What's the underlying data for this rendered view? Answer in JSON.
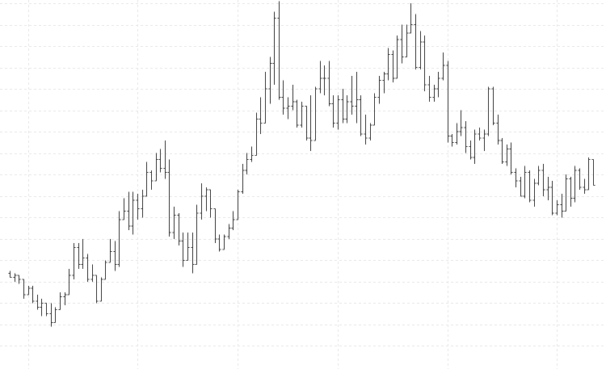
{
  "chart_data": {
    "type": "ohlc",
    "grid": true,
    "colors": {
      "bar": "#333333",
      "grid": "#e6e6e6",
      "background": "#ffffff"
    },
    "ylim": [
      -10,
      160
    ],
    "y_gridlines": [
      0,
      10,
      20,
      30,
      40,
      50,
      60,
      70,
      80,
      90,
      100,
      110,
      120,
      130,
      140,
      150,
      160
    ],
    "x_gridlines_index": [
      4,
      28,
      50,
      72,
      96,
      120,
      143,
      165,
      189
    ],
    "bars": [
      [
        34,
        35,
        32,
        32
      ],
      [
        32,
        34,
        30,
        33
      ],
      [
        33,
        33,
        29,
        31
      ],
      [
        31,
        31,
        22,
        24
      ],
      [
        24,
        28,
        24,
        27
      ],
      [
        27,
        28,
        20,
        21
      ],
      [
        21,
        24,
        17,
        18
      ],
      [
        18,
        22,
        14,
        20
      ],
      [
        20,
        20,
        14,
        15
      ],
      [
        15,
        20,
        9,
        11
      ],
      [
        11,
        18,
        11,
        17
      ],
      [
        17,
        25,
        17,
        23
      ],
      [
        23,
        25,
        19,
        24
      ],
      [
        24,
        36,
        24,
        33
      ],
      [
        33,
        48,
        31,
        46
      ],
      [
        46,
        48,
        36,
        38
      ],
      [
        38,
        50,
        36,
        41
      ],
      [
        41,
        43,
        30,
        31
      ],
      [
        31,
        38,
        30,
        33
      ],
      [
        33,
        33,
        20,
        21
      ],
      [
        21,
        32,
        21,
        31
      ],
      [
        31,
        40,
        31,
        39
      ],
      [
        39,
        50,
        39,
        44
      ],
      [
        44,
        49,
        35,
        38
      ],
      [
        38,
        63,
        37,
        59
      ],
      [
        59,
        69,
        59,
        63
      ],
      [
        63,
        72,
        54,
        56
      ],
      [
        56,
        72,
        52,
        68
      ],
      [
        68,
        71,
        59,
        64
      ],
      [
        64,
        73,
        60,
        70
      ],
      [
        70,
        86,
        70,
        81
      ],
      [
        81,
        82,
        73,
        77
      ],
      [
        77,
        90,
        77,
        87
      ],
      [
        87,
        92,
        81,
        83
      ],
      [
        83,
        96,
        78,
        81
      ],
      [
        81,
        87,
        51,
        53
      ],
      [
        53,
        65,
        50,
        61
      ],
      [
        61,
        62,
        47,
        49
      ],
      [
        49,
        53,
        37,
        40
      ],
      [
        40,
        53,
        40,
        46
      ],
      [
        46,
        53,
        34,
        38
      ],
      [
        38,
        66,
        38,
        62
      ],
      [
        62,
        76,
        59,
        70
      ],
      [
        70,
        74,
        63,
        73
      ],
      [
        73,
        73,
        60,
        64
      ],
      [
        64,
        64,
        48,
        50
      ],
      [
        50,
        52,
        44,
        45
      ],
      [
        45,
        52,
        45,
        51
      ],
      [
        51,
        57,
        50,
        55
      ],
      [
        55,
        63,
        54,
        59
      ],
      [
        59,
        73,
        59,
        72
      ],
      [
        72,
        85,
        71,
        82
      ],
      [
        82,
        90,
        80,
        87
      ],
      [
        87,
        93,
        86,
        89
      ],
      [
        89,
        109,
        89,
        106
      ],
      [
        106,
        116,
        99,
        104
      ],
      [
        104,
        128,
        104,
        120
      ],
      [
        120,
        135,
        113,
        132
      ],
      [
        132,
        156,
        122,
        153
      ],
      [
        153,
        161,
        115,
        116
      ],
      [
        116,
        124,
        108,
        111
      ],
      [
        111,
        116,
        106,
        112
      ],
      [
        112,
        122,
        110,
        114
      ],
      [
        114,
        115,
        102,
        103
      ],
      [
        103,
        114,
        102,
        112
      ],
      [
        112,
        112,
        96,
        97
      ],
      [
        97,
        117,
        91,
        96
      ],
      [
        96,
        121,
        96,
        120
      ],
      [
        120,
        133,
        118,
        125
      ],
      [
        125,
        131,
        117,
        125
      ],
      [
        125,
        133,
        112,
        113
      ],
      [
        113,
        117,
        102,
        104
      ],
      [
        104,
        117,
        101,
        115
      ],
      [
        115,
        120,
        104,
        106
      ],
      [
        106,
        117,
        104,
        114
      ],
      [
        114,
        126,
        108,
        112
      ],
      [
        112,
        128,
        104,
        115
      ],
      [
        115,
        117,
        98,
        99
      ],
      [
        99,
        108,
        94,
        97
      ],
      [
        97,
        104,
        96,
        103
      ],
      [
        103,
        118,
        103,
        116
      ],
      [
        116,
        126,
        113,
        124
      ],
      [
        124,
        128,
        118,
        127
      ],
      [
        127,
        139,
        124,
        136
      ],
      [
        136,
        138,
        123,
        125
      ],
      [
        125,
        145,
        125,
        143
      ],
      [
        143,
        150,
        132,
        135
      ],
      [
        135,
        150,
        135,
        146
      ],
      [
        146,
        160,
        146,
        150
      ],
      [
        150,
        155,
        129,
        130
      ],
      [
        130,
        147,
        129,
        142
      ],
      [
        142,
        145,
        119,
        122
      ],
      [
        122,
        126,
        114,
        116
      ],
      [
        116,
        122,
        114,
        120
      ],
      [
        120,
        128,
        116,
        125
      ],
      [
        125,
        137,
        124,
        131
      ],
      [
        131,
        133,
        95,
        98
      ],
      [
        98,
        99,
        93,
        95
      ],
      [
        95,
        104,
        94,
        100
      ],
      [
        100,
        110,
        98,
        102
      ],
      [
        102,
        105,
        90,
        93
      ],
      [
        93,
        96,
        87,
        88
      ],
      [
        88,
        101,
        85,
        99
      ],
      [
        99,
        102,
        96,
        97
      ],
      [
        97,
        101,
        91,
        99
      ],
      [
        99,
        121,
        98,
        120
      ],
      [
        120,
        121,
        103,
        104
      ],
      [
        104,
        108,
        94,
        96
      ],
      [
        96,
        97,
        85,
        86
      ],
      [
        86,
        94,
        84,
        92
      ],
      [
        92,
        95,
        80,
        81
      ],
      [
        81,
        83,
        74,
        77
      ],
      [
        77,
        79,
        70,
        70
      ],
      [
        70,
        84,
        69,
        81
      ],
      [
        81,
        82,
        67,
        68
      ],
      [
        68,
        78,
        65,
        76
      ],
      [
        76,
        84,
        75,
        82
      ],
      [
        82,
        85,
        70,
        73
      ],
      [
        73,
        79,
        68,
        74
      ],
      [
        74,
        77,
        61,
        62
      ],
      [
        62,
        68,
        61,
        66
      ],
      [
        66,
        71,
        60,
        63
      ],
      [
        63,
        80,
        63,
        78
      ],
      [
        78,
        79,
        65,
        69
      ],
      [
        69,
        84,
        67,
        82
      ],
      [
        82,
        83,
        73,
        74
      ],
      [
        74,
        78,
        71,
        73
      ],
      [
        73,
        88,
        73,
        87
      ],
      [
        87,
        87,
        75,
        75
      ]
    ]
  }
}
